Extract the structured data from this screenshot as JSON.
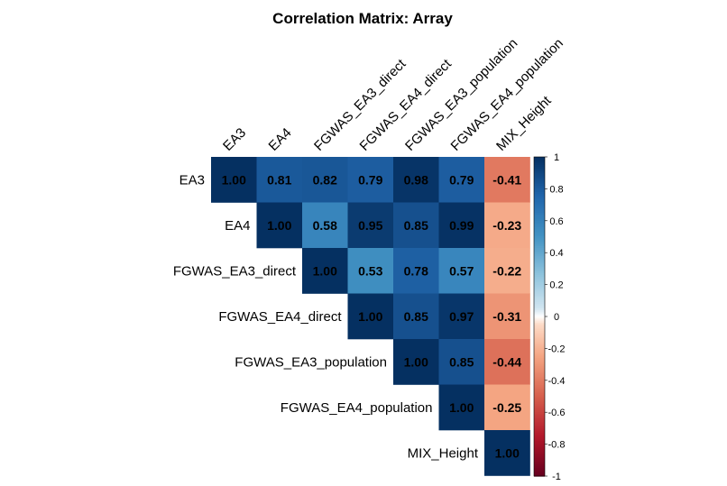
{
  "chart_data": {
    "type": "heatmap",
    "title": "Correlation Matrix: Array",
    "variables": [
      "EA3",
      "EA4",
      "FGWAS_EA3_direct",
      "FGWAS_EA4_direct",
      "FGWAS_EA3_population",
      "FGWAS_EA4_population",
      "MIX_Height"
    ],
    "matrix": [
      [
        1.0,
        0.81,
        0.82,
        0.79,
        0.98,
        0.79,
        -0.41
      ],
      [
        null,
        1.0,
        0.58,
        0.95,
        0.85,
        0.99,
        -0.23
      ],
      [
        null,
        null,
        1.0,
        0.53,
        0.78,
        0.57,
        -0.22
      ],
      [
        null,
        null,
        null,
        1.0,
        0.85,
        0.97,
        -0.31
      ],
      [
        null,
        null,
        null,
        null,
        1.0,
        0.85,
        -0.44
      ],
      [
        null,
        null,
        null,
        null,
        null,
        1.0,
        -0.25
      ],
      [
        null,
        null,
        null,
        null,
        null,
        null,
        1.0
      ]
    ],
    "colorbar": {
      "range": [
        -1,
        1
      ],
      "ticks": [
        "1",
        "0.8",
        "0.6",
        "0.4",
        "0.2",
        "0",
        "-0.2",
        "-0.4",
        "-0.6",
        "-0.8",
        "-1"
      ]
    },
    "colors": {
      "negative": "#67001F",
      "neutral": "#FFFFFF",
      "positive": "#053061"
    },
    "layout": "upper-triangular"
  }
}
